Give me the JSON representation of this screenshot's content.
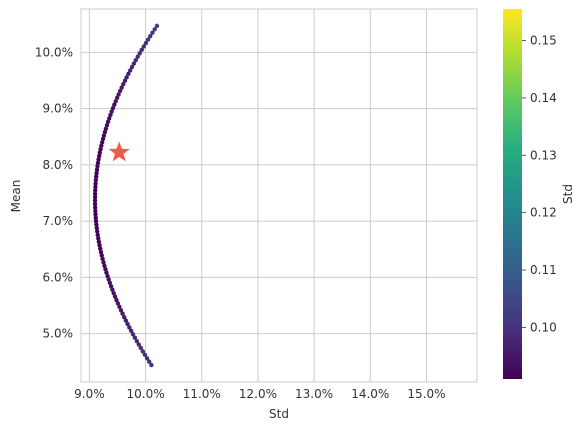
{
  "chart_data": {
    "type": "scatter",
    "xlabel": "Std",
    "ylabel": "Mean",
    "colorbar_label": "Std",
    "xlim": [
      0.0885,
      0.159
    ],
    "ylim": [
      0.0414,
      0.1077
    ],
    "x_ticks": [
      0.09,
      0.1,
      0.11,
      0.12,
      0.13,
      0.14,
      0.15
    ],
    "x_tick_labels": [
      "9.0%",
      "10.0%",
      "11.0%",
      "12.0%",
      "13.0%",
      "14.0%",
      "15.0%"
    ],
    "y_ticks": [
      0.05,
      0.06,
      0.07,
      0.08,
      0.09,
      0.1
    ],
    "y_tick_labels": [
      "5.0%",
      "6.0%",
      "7.0%",
      "8.0%",
      "9.0%",
      "10.0%"
    ],
    "colorbar_range": [
      0.091,
      0.1555
    ],
    "colorbar_ticks": [
      0.1,
      0.11,
      0.12,
      0.13,
      0.14,
      0.15
    ],
    "colorbar_tick_labels": [
      "0.10",
      "0.11",
      "0.12",
      "0.13",
      "0.14",
      "0.15"
    ],
    "colormap": "viridis",
    "grid": true,
    "frontier": {
      "min_std": 0.091,
      "min_var_mean": 0.0738,
      "curvature": 0.000223,
      "mean_start": 0.0444,
      "mean_end": 0.1047,
      "n_points": 100
    },
    "marker": {
      "name": "optimal-portfolio",
      "x": 0.0953,
      "y": 0.0822,
      "shape": "star",
      "color": "#f05a4a"
    },
    "colors": {
      "grid": "#cccccc",
      "text": "#333333",
      "background": "#ffffff"
    }
  }
}
